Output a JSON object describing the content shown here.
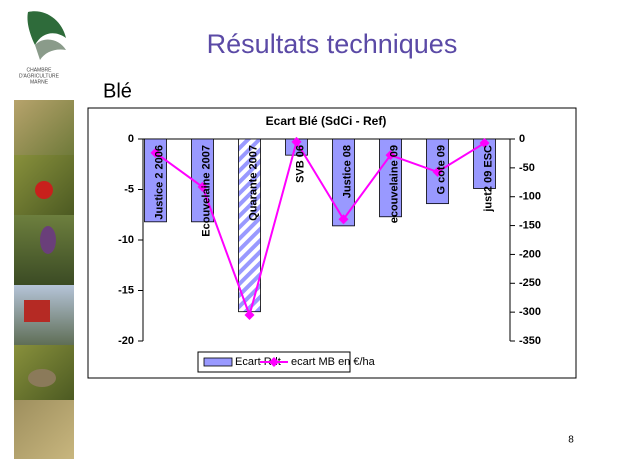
{
  "slide": {
    "title": "Résultats techniques",
    "subtitle": "Blé",
    "page_number": "8",
    "logo": [
      "CHAMBRE",
      "D'AGRICULTURE",
      "MARNE"
    ]
  },
  "chart_data": {
    "type": "bar_line",
    "title": "Ecart Blé (SdCi - Ref)",
    "categories": [
      "Justice 2 2006",
      "Ecouvelaine 2007",
      "Quarante 2007",
      "SVB 06",
      "Justice 08",
      "ecouvelaine 09",
      "G cote 09",
      "just2 09 ESC"
    ],
    "series": [
      {
        "name": "Ecart Rdt",
        "type": "bar",
        "color": "#9999ff",
        "values": [
          -8.2,
          -8.2,
          -17.1,
          -1.6,
          -8.6,
          -7.7,
          -6.4,
          -4.9
        ],
        "patterns": [
          "solid",
          "solid",
          "hatch",
          "solid",
          "solid",
          "solid",
          "solid",
          "solid"
        ]
      },
      {
        "name": "ecart MB en €/ha",
        "type": "line",
        "axis": "y2",
        "color": "#ff00ff",
        "values": [
          -24,
          -83,
          -305,
          -5,
          -139,
          -28,
          -57,
          -7
        ]
      }
    ],
    "ylim": [
      -20,
      0
    ],
    "yticks": [
      0,
      -5,
      -10,
      -15,
      -20
    ],
    "y2lim": [
      -350,
      0
    ],
    "y2ticks": [
      0,
      -50,
      -100,
      -150,
      -200,
      -250,
      -300,
      -350
    ],
    "legend": "bottom"
  }
}
